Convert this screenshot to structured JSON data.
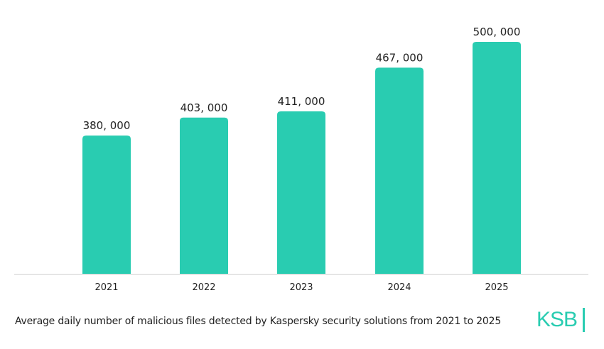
{
  "chart_data": {
    "type": "bar",
    "title": "",
    "xlabel": "",
    "ylabel": "",
    "categories": [
      "2021",
      "2022",
      "2023",
      "2024",
      "2025"
    ],
    "values": [
      380000,
      403000,
      411000,
      467000,
      500000
    ],
    "value_labels": [
      "380, 000",
      "403, 000",
      "411, 000",
      "467, 000",
      "500, 000"
    ],
    "ylim": [
      203000,
      500000
    ],
    "grid": false,
    "bar_color": "#29ccb1"
  },
  "caption": "Average daily number of malicious files detected by Kaspersky security solutions from 2021 to 2025",
  "logo": "KSB"
}
